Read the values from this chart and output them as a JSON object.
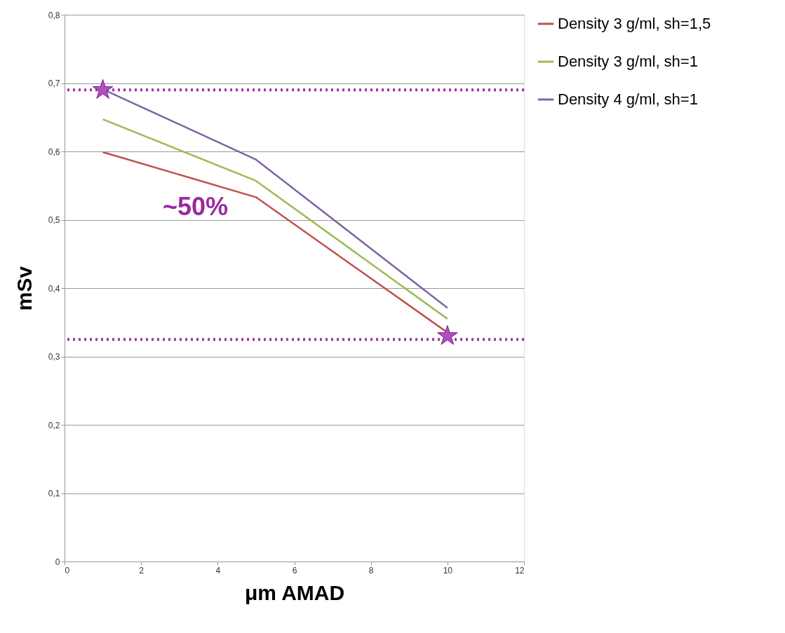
{
  "chart_data": {
    "type": "line",
    "xlabel": "μm AMAD",
    "ylabel": "mSv",
    "x": [
      1,
      5,
      10
    ],
    "series": [
      {
        "name": "Density 3 g/ml, sh=1,5",
        "color": "#c0504d",
        "values": [
          0.599,
          0.533,
          0.335
        ]
      },
      {
        "name": "Density 3 g/ml, sh=1",
        "color": "#9bbb59",
        "values": [
          0.647,
          0.557,
          0.355
        ]
      },
      {
        "name": "Density 4 g/ml, sh=1",
        "color": "#8064a2",
        "values": [
          0.691,
          0.588,
          0.371
        ]
      },
      {
        "type": "scatter",
        "marker": "star",
        "color": "#b04fc0",
        "x": [
          1,
          10
        ],
        "values": [
          0.69,
          0.33
        ]
      }
    ],
    "xlim": [
      0,
      12
    ],
    "xticks": [
      0,
      2,
      4,
      6,
      8,
      10,
      12
    ],
    "ylim": [
      0,
      0.8
    ],
    "yticks": [
      0,
      {
        "value": 0.1,
        "label": "0,1"
      },
      {
        "value": 0.2,
        "label": "0,2"
      },
      {
        "value": 0.3,
        "label": "0,3"
      },
      {
        "value": 0.4,
        "label": "0,4"
      },
      {
        "value": 0.5,
        "label": "0,5"
      },
      {
        "value": 0.6,
        "label": "0,6"
      },
      {
        "value": 0.7,
        "label": "0,7"
      },
      {
        "value": 0.8,
        "label": "0,8"
      }
    ],
    "ref_lines": [
      {
        "axis": "y",
        "value": 0.69,
        "color": "#a030a8",
        "line_style": "dotted"
      },
      {
        "axis": "y",
        "value": 0.325,
        "color": "#a030a8",
        "line_style": "dotted"
      }
    ],
    "annotations": [
      "~50%"
    ],
    "grid": "y",
    "legend": "right"
  }
}
